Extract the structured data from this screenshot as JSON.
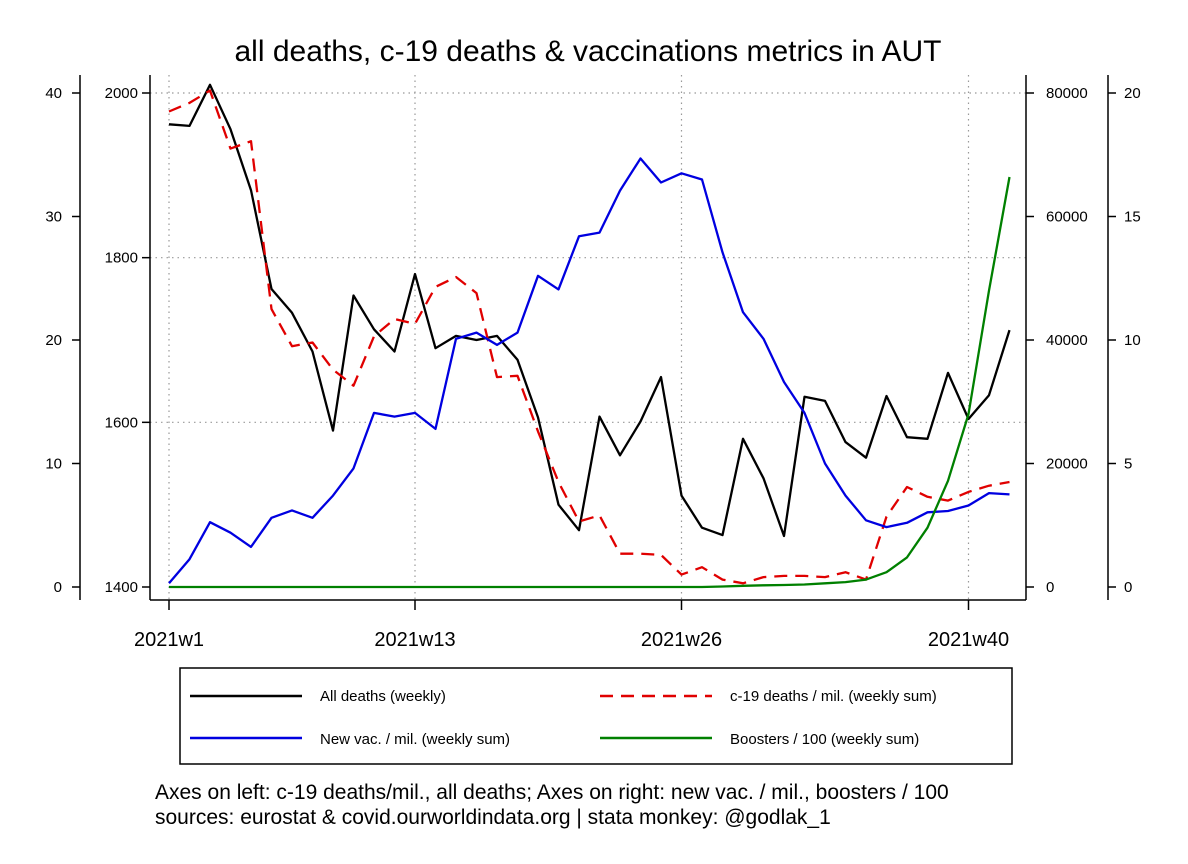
{
  "chart_data": {
    "type": "line",
    "title": "all deaths, c-19 deaths & vaccinations metrics in AUT",
    "x": [
      1,
      2,
      3,
      4,
      5,
      6,
      7,
      8,
      9,
      10,
      11,
      12,
      13,
      14,
      15,
      16,
      17,
      18,
      19,
      20,
      21,
      22,
      23,
      24,
      25,
      26,
      27,
      28,
      29,
      30,
      31,
      32,
      33,
      34,
      35,
      36,
      37,
      38,
      39,
      40,
      41,
      42
    ],
    "x_ticks": [
      {
        "value": 1,
        "label": "2021w1"
      },
      {
        "value": 13,
        "label": "2021w13"
      },
      {
        "value": 26,
        "label": "2021w26"
      },
      {
        "value": 40,
        "label": "2021w40"
      }
    ],
    "axes": {
      "left_outer": {
        "range": [
          0,
          40
        ],
        "ticks": [
          "0",
          "10",
          "20",
          "30",
          "40"
        ]
      },
      "left_inner": {
        "range": [
          1400,
          2000
        ],
        "ticks": [
          "1400",
          "1600",
          "1800",
          "2000"
        ]
      },
      "right_inner": {
        "range": [
          0,
          80000
        ],
        "ticks": [
          "0",
          "20000",
          "40000",
          "60000",
          "80000"
        ]
      },
      "right_outer": {
        "range": [
          0,
          20
        ],
        "ticks": [
          "0",
          "5",
          "10",
          "15",
          "20"
        ]
      }
    },
    "grid": true,
    "series": [
      {
        "name": "All deaths (weekly)",
        "axis": "left_inner",
        "color": "#000000",
        "dash": "solid",
        "values": [
          1962,
          1960,
          2010,
          1956,
          1882,
          1762,
          1733,
          1686,
          1590,
          1754,
          1713,
          1686,
          1780,
          1690,
          1705,
          1700,
          1705,
          1676,
          1606,
          1500,
          1469,
          1607,
          1560,
          1601,
          1655,
          1511,
          1472,
          1463,
          1580,
          1532,
          1462,
          1631,
          1626,
          1576,
          1557,
          1632,
          1582,
          1580,
          1660,
          1604,
          1633,
          1712
        ]
      },
      {
        "name": "c-19 deaths / mil. (weekly sum)",
        "axis": "left_outer",
        "color": "#e00000",
        "dash": "dashed",
        "values": [
          38.5,
          39.2,
          40.2,
          35.5,
          36.1,
          22.5,
          19.5,
          19.8,
          17.6,
          16.3,
          20.3,
          21.7,
          21.3,
          24.3,
          25.1,
          23.8,
          17.0,
          17.1,
          12.6,
          8.5,
          5.3,
          5.8,
          2.7,
          2.7,
          2.6,
          1.0,
          1.6,
          0.6,
          0.3,
          0.8,
          0.9,
          0.9,
          0.8,
          1.2,
          0.6,
          5.7,
          8.1,
          7.3,
          7.0,
          7.7,
          8.2,
          8.5
        ]
      },
      {
        "name": "New vac. / mil. (weekly sum)",
        "axis": "right_inner",
        "color": "#0000e0",
        "dash": "solid",
        "values": [
          600,
          4500,
          10500,
          8800,
          6500,
          11200,
          12400,
          11200,
          14800,
          19200,
          28200,
          27600,
          28200,
          25600,
          40200,
          41200,
          39200,
          41200,
          50400,
          48200,
          56800,
          57400,
          64200,
          69400,
          65500,
          67000,
          66000,
          54200,
          44500,
          40200,
          33200,
          28200,
          20000,
          14800,
          10800,
          9700,
          10400,
          12100,
          12300,
          13200,
          15200,
          15000
        ]
      },
      {
        "name": "Boosters / 100 (weekly sum)",
        "axis": "right_outer",
        "color": "#008000",
        "dash": "solid",
        "values": [
          0,
          0,
          0,
          0,
          0,
          0,
          0,
          0,
          0,
          0,
          0,
          0,
          0,
          0,
          0,
          0,
          0,
          0,
          0,
          0,
          0,
          0,
          0,
          0,
          0,
          0,
          0,
          0.02,
          0.05,
          0.07,
          0.08,
          0.1,
          0.15,
          0.2,
          0.3,
          0.6,
          1.2,
          2.4,
          4.3,
          7.0,
          12.0,
          16.6
        ]
      }
    ],
    "legend": {
      "placement": "bottom",
      "columns": 2
    },
    "notes": [
      "Axes on left: c-19 deaths/mil., all deaths; Axes on right: new vac. / mil., boosters / 100",
      "sources: eurostat & covid.ourworldindata.org | stata monkey: @godlak_1"
    ]
  }
}
